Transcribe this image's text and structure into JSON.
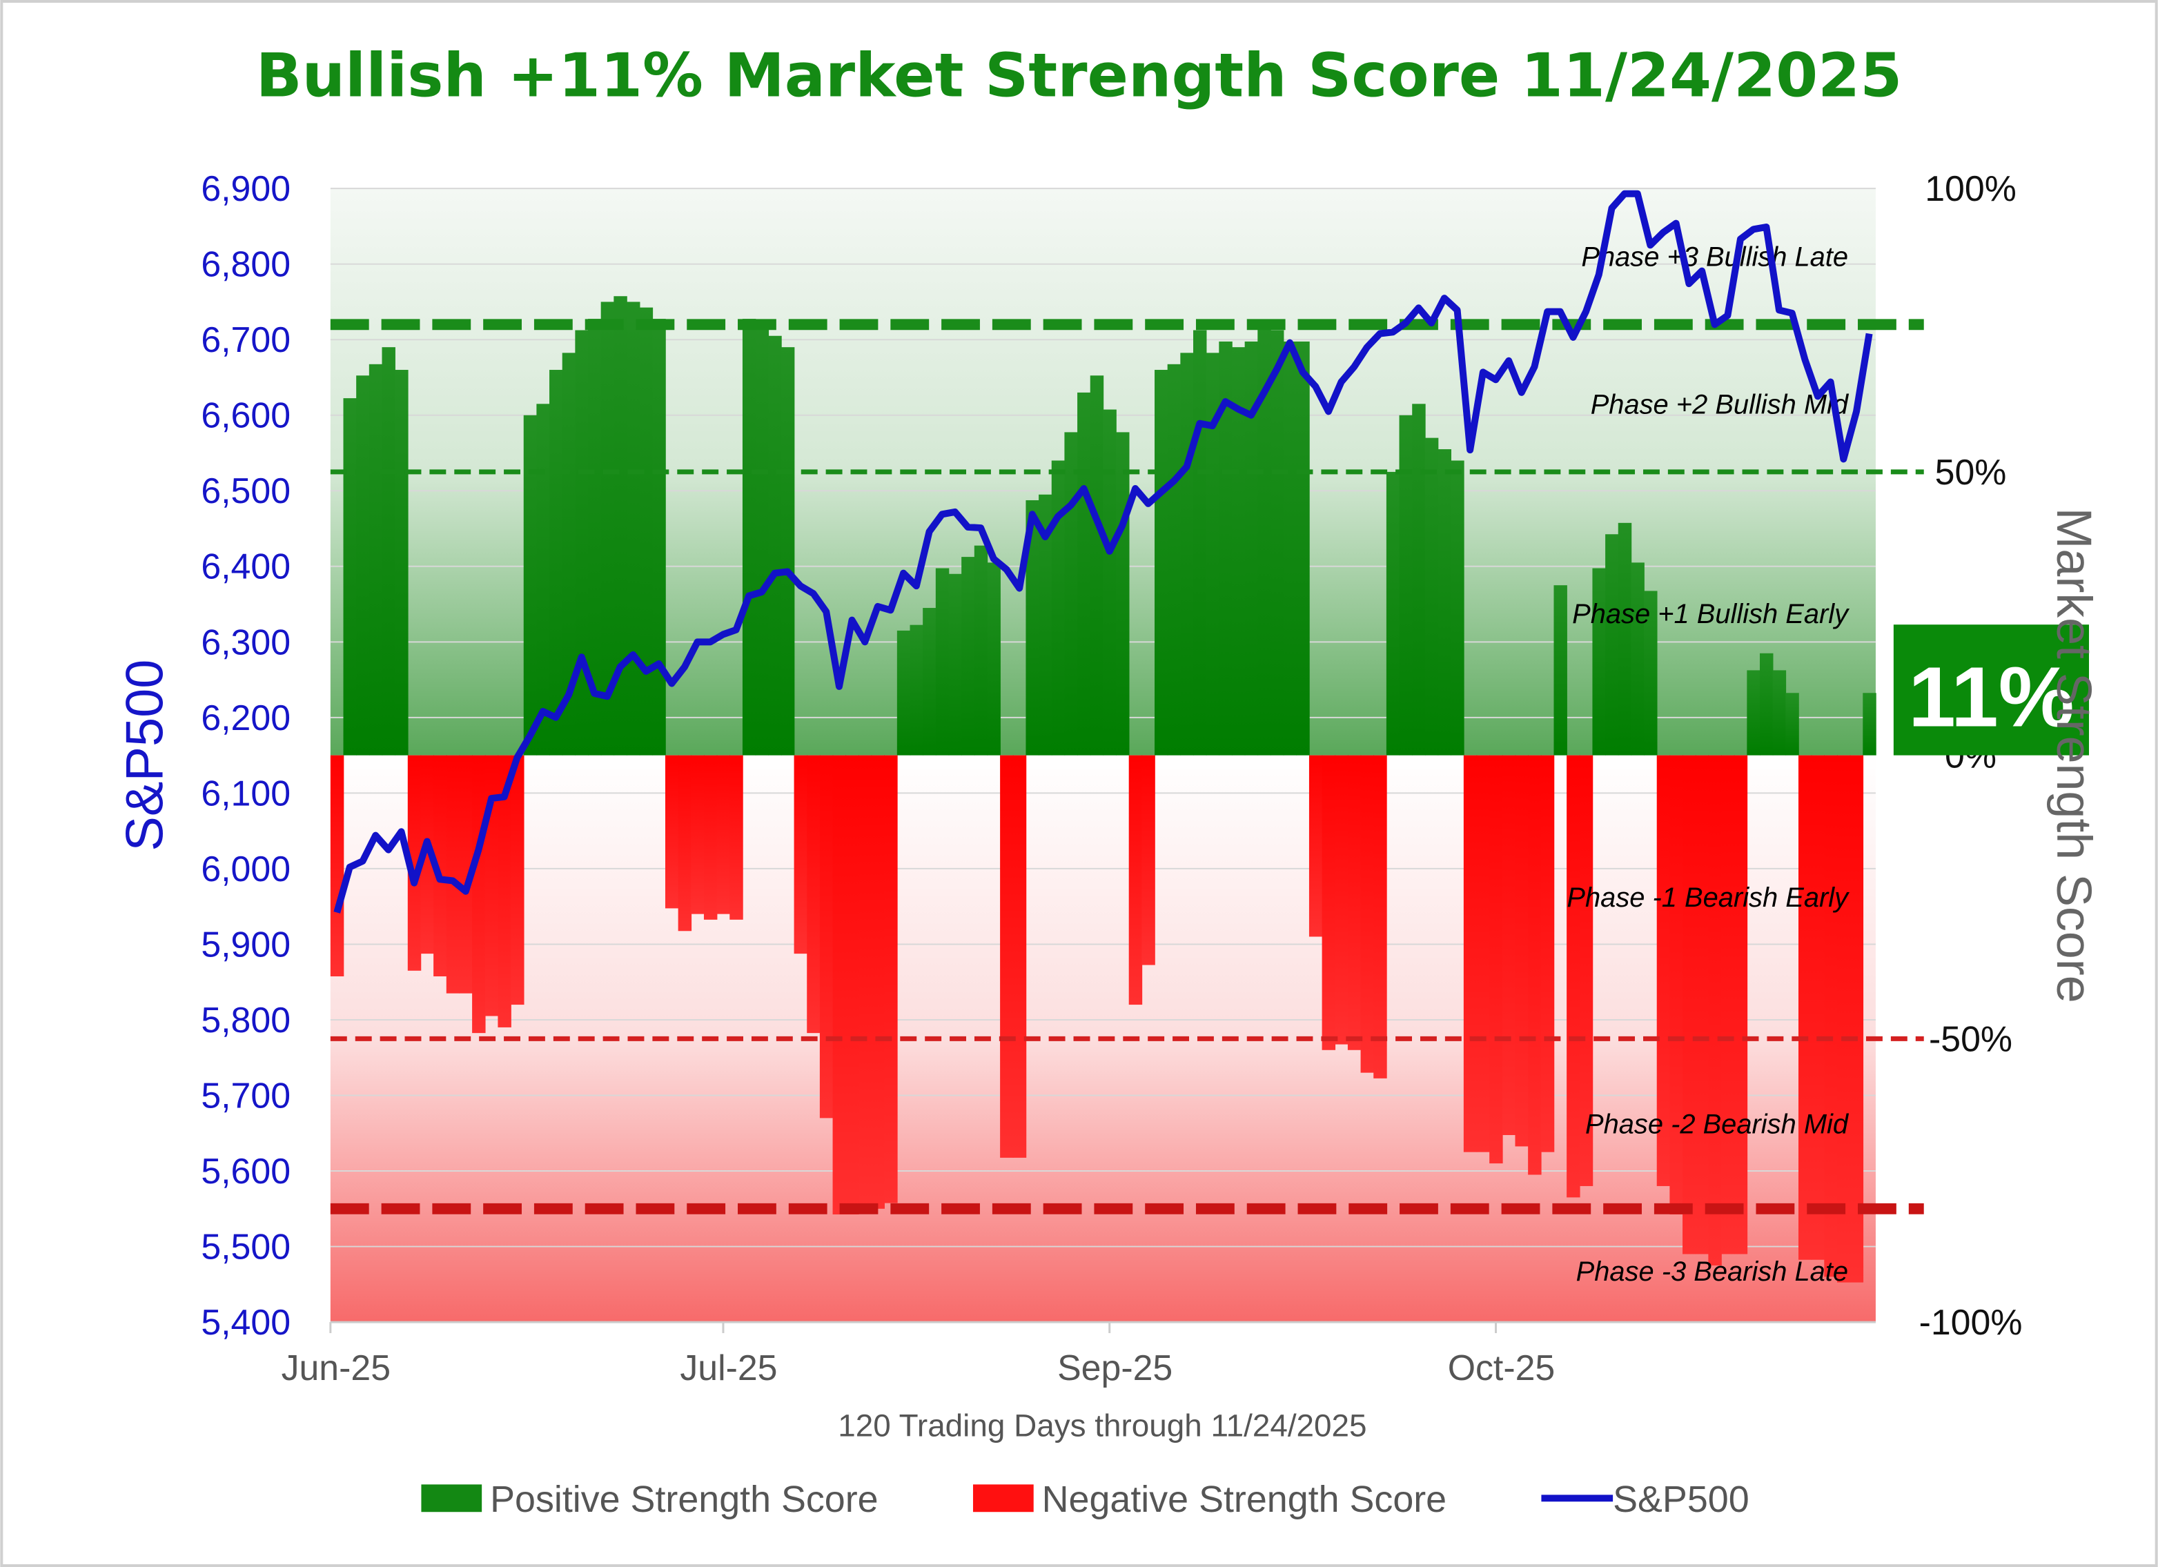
{
  "chart_data": {
    "type": "bar",
    "title": "Bullish +11% Market Strength Score 11/24/2025",
    "xlabel": "120 Trading Days through 11/24/2025",
    "ylabel_left": "S&P500",
    "ylabel_right": "Market Strength Score",
    "ylim_left": [
      5400,
      6900
    ],
    "ylim_right": [
      -100,
      100
    ],
    "left_ticks": [
      "6,900",
      "6,800",
      "6,700",
      "6,600",
      "6,500",
      "6,400",
      "6,300",
      "6,200",
      "6,100",
      "6,000",
      "5,900",
      "5,800",
      "5,700",
      "5,600",
      "5,500",
      "5,400"
    ],
    "left_tick_values": [
      6900,
      6800,
      6700,
      6600,
      6500,
      6400,
      6300,
      6200,
      6100,
      6000,
      5900,
      5800,
      5700,
      5600,
      5500,
      5400
    ],
    "right_ticks": [
      {
        "label": "100%",
        "value": 100
      },
      {
        "label": "50%",
        "value": 50
      },
      {
        "label": "0%",
        "value": 0
      },
      {
        "label": "-50%",
        "value": -50
      },
      {
        "label": "-100%",
        "value": -100
      }
    ],
    "x_ticks": [
      {
        "label": "Jun-25",
        "index": 0
      },
      {
        "label": "Jul-25",
        "index": 30.5
      },
      {
        "label": "Sep-25",
        "index": 60.5
      },
      {
        "label": "Oct-25",
        "index": 90.5
      }
    ],
    "days": 120,
    "strength_score": [
      -39,
      63,
      67,
      69,
      72,
      68,
      -38,
      -35,
      -39,
      -42,
      -42,
      -49,
      -46,
      -48,
      -44,
      60,
      62,
      68,
      71,
      75,
      77,
      80,
      81,
      80,
      79,
      77,
      -27,
      -31,
      -28,
      -29,
      -28,
      -29,
      77,
      76,
      74,
      72,
      -35,
      -49,
      -64,
      -81,
      -81,
      -80,
      -80,
      -79,
      22,
      23,
      26,
      33,
      32,
      35,
      37,
      34,
      -71,
      -71,
      45,
      46,
      52,
      57,
      64,
      67,
      61,
      57,
      -44,
      -37,
      68,
      69,
      71,
      75,
      71,
      73,
      72,
      73,
      76,
      75,
      73,
      73,
      -32,
      -52,
      -51,
      -52,
      -56,
      -57,
      50,
      60,
      62,
      56,
      54,
      52,
      -70,
      -70,
      -72,
      -67,
      -69,
      -74,
      -70,
      30,
      -78,
      -76,
      33,
      39,
      41,
      34,
      29,
      -76,
      -81,
      -88,
      -88,
      -90,
      -88,
      -88,
      15,
      18,
      15,
      11,
      -89,
      -89,
      -92,
      -93,
      -93,
      11
    ],
    "sp500": [
      5942,
      6002,
      6010,
      6044,
      6025,
      6049,
      5981,
      6036,
      5986,
      5984,
      5970,
      6025,
      6093,
      6095,
      6147,
      6176,
      6208,
      6200,
      6230,
      6280,
      6232,
      6228,
      6267,
      6283,
      6261,
      6271,
      6245,
      6267,
      6300,
      6300,
      6310,
      6316,
      6361,
      6366,
      6391,
      6393,
      6374,
      6364,
      6340,
      6241,
      6329,
      6300,
      6347,
      6342,
      6391,
      6374,
      6446,
      6469,
      6472,
      6452,
      6451,
      6410,
      6396,
      6371,
      6469,
      6439,
      6466,
      6481,
      6503,
      6462,
      6420,
      6454,
      6503,
      6483,
      6498,
      6513,
      6532,
      6589,
      6586,
      6618,
      6608,
      6600,
      6630,
      6661,
      6696,
      6657,
      6638,
      6605,
      6644,
      6664,
      6690,
      6708,
      6710,
      6722,
      6742,
      6722,
      6755,
      6739,
      6554,
      6657,
      6647,
      6672,
      6630,
      6664,
      6737,
      6737,
      6703,
      6737,
      6786,
      6874,
      6893,
      6893,
      6825,
      6842,
      6854,
      6774,
      6791,
      6720,
      6732,
      6833,
      6846,
      6849,
      6739,
      6735,
      6674,
      6625,
      6644,
      6542,
      6605,
      6708
    ],
    "reference_lines": [
      {
        "value": 76,
        "style": "thick",
        "color": "#1a8c1a"
      },
      {
        "value": 50,
        "style": "thin",
        "color": "#1a8c1a"
      },
      {
        "value": -50,
        "style": "thin",
        "color": "#d42020"
      },
      {
        "value": -80,
        "style": "thick",
        "color": "#c81414"
      }
    ],
    "phases": [
      {
        "label": "Phase +3 Bullish Late",
        "value": 88
      },
      {
        "label": "Phase +2 Bullish Mid",
        "value": 62
      },
      {
        "label": "Phase +1 Bullish Early",
        "value": 25
      },
      {
        "label": "Phase -1 Bearish Early",
        "value": -25
      },
      {
        "label": "Phase -2 Bearish Mid",
        "value": -65
      },
      {
        "label": "Phase -3 Bearish Late",
        "value": -91
      }
    ],
    "current_badge": "11%",
    "legend": [
      {
        "label": "Positive Strength Score",
        "kind": "bar",
        "color": "#138813"
      },
      {
        "label": "Negative Strength Score",
        "kind": "bar",
        "color": "#ff1010"
      },
      {
        "label": "S&P500",
        "kind": "line",
        "color": "#1212c8"
      }
    ],
    "colors": {
      "positive": "#1e8e1e",
      "negative": "#ff1a1a",
      "line": "#1212c8",
      "title": "#148a14",
      "badge": "#0a8a0a"
    }
  }
}
